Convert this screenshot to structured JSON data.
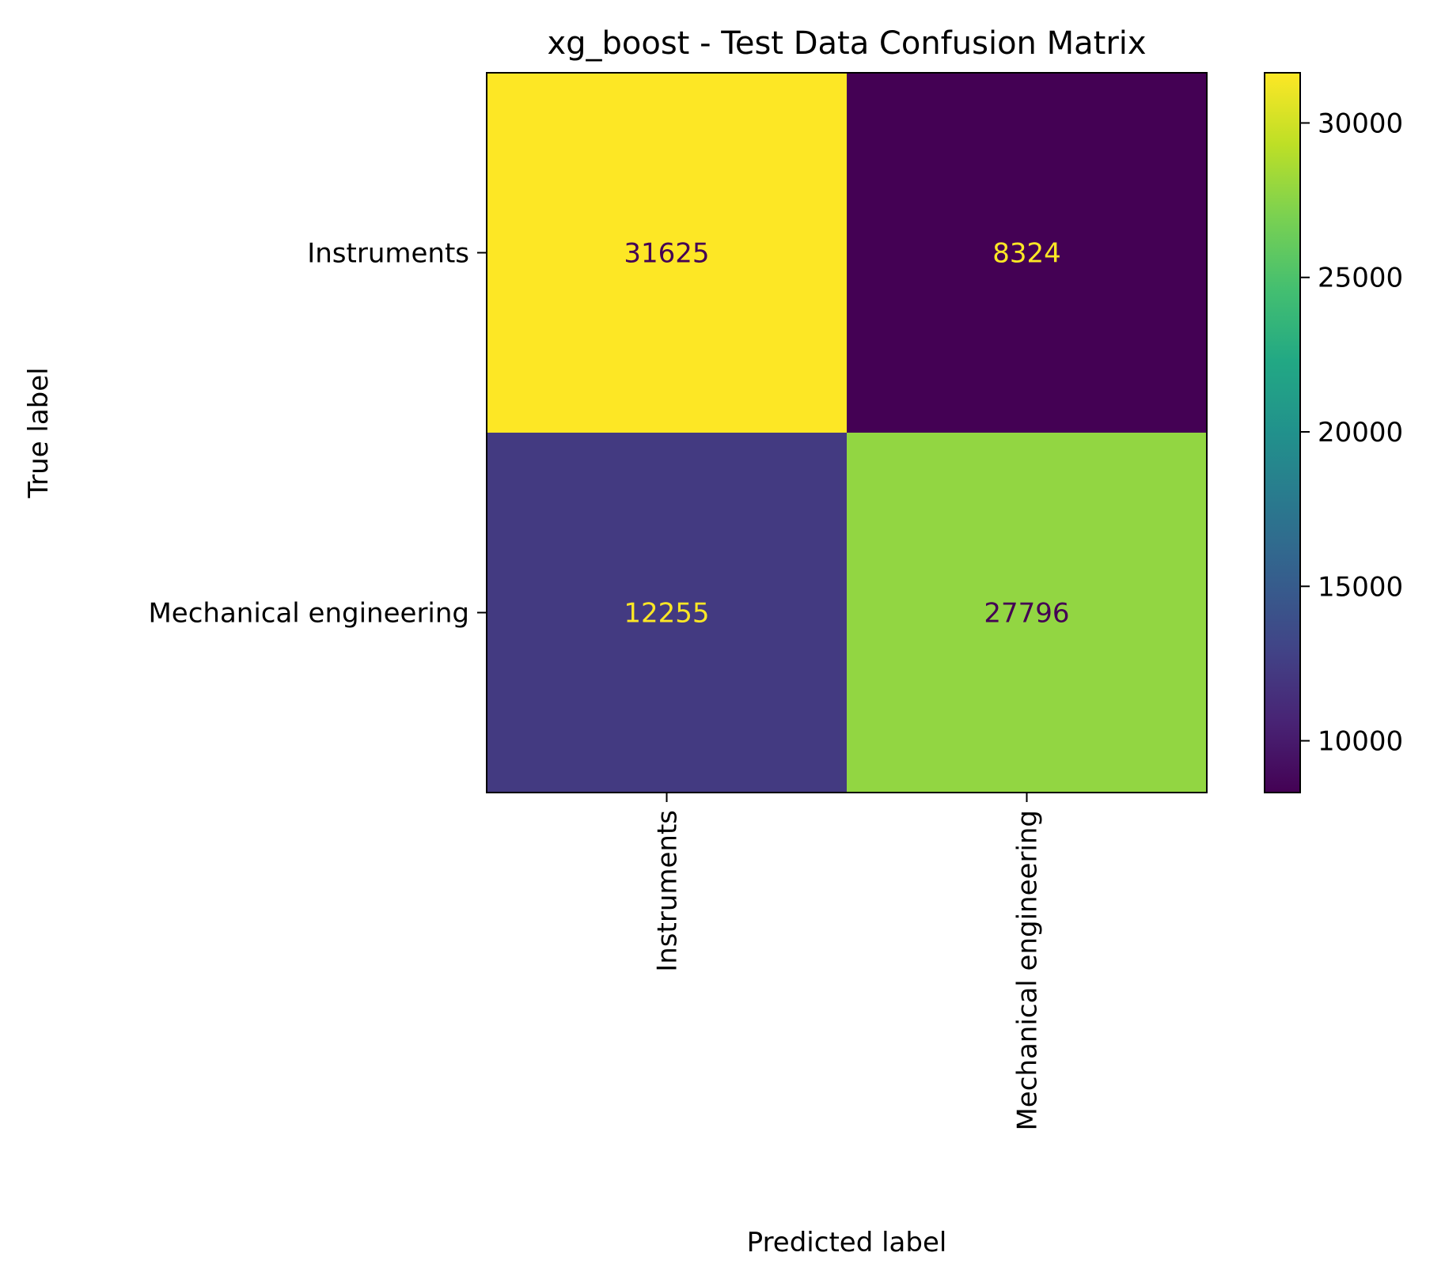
{
  "chart_data": {
    "type": "heatmap",
    "title": "xg_boost - Test Data Confusion Matrix",
    "xlabel": "Predicted label",
    "ylabel": "True label",
    "x_categories": [
      "Instruments",
      "Mechanical engineering"
    ],
    "y_categories": [
      "Instruments",
      "Mechanical engineering"
    ],
    "values": [
      [
        31625,
        8324
      ],
      [
        12255,
        27796
      ]
    ],
    "colormap": "viridis",
    "colorbar": {
      "range": [
        8324,
        31625
      ],
      "ticks": [
        10000,
        15000,
        20000,
        25000,
        30000
      ],
      "tick_labels": [
        "10000",
        "15000",
        "20000",
        "25000",
        "30000"
      ]
    },
    "text_colors": {
      "on_dark": "#fde725",
      "on_light": "#440154"
    },
    "grid": false
  }
}
